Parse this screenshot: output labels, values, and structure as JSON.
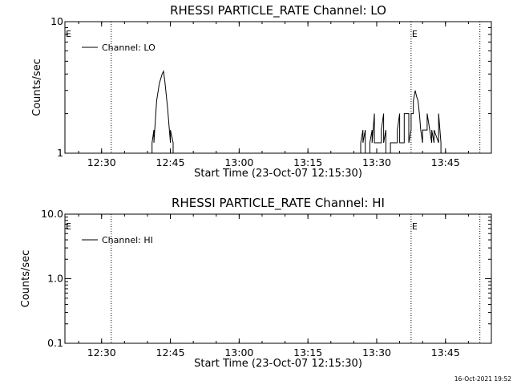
{
  "footer": {
    "timestamp": "16-Oct-2021 19:52"
  },
  "chart_data": [
    {
      "type": "line",
      "title": "RHESSI PARTICLE_RATE Channel: LO",
      "xlabel": "Start Time (23-Oct-07 12:15:30)",
      "ylabel": "Counts/sec",
      "xlim": [
        12.3667,
        13.9167
      ],
      "x_ticks": [
        12.5,
        12.75,
        13.0,
        13.25,
        13.5,
        13.75
      ],
      "x_tick_labels": [
        "12:30",
        "12:45",
        "13:00",
        "13:15",
        "13:30",
        "13:45"
      ],
      "ylim": [
        1,
        10
      ],
      "y_scale": "log",
      "y_ticks": [
        1,
        10
      ],
      "y_tick_labels": [
        "1",
        "10"
      ],
      "legend": {
        "position": "top-left",
        "entries": [
          "Channel: LO"
        ]
      },
      "markers": [
        {
          "x": 12.535,
          "label": ""
        },
        {
          "x": 13.625,
          "label": "E"
        },
        {
          "x": 13.875,
          "label": ""
        }
      ],
      "edge_label": "E",
      "series": [
        {
          "x": [
            12.6833,
            12.6833,
            12.69,
            12.69,
            12.7,
            12.71,
            12.72,
            12.725,
            12.73,
            12.74,
            12.75,
            12.75,
            12.76,
            12.76,
            13.4417,
            13.4417,
            13.45,
            13.45,
            13.4583,
            13.4583,
            13.475,
            13.475,
            13.4833,
            13.4833,
            13.4917,
            13.4917,
            13.5167,
            13.5167,
            13.525,
            13.525,
            13.5333,
            13.5333,
            13.55,
            13.55,
            13.575,
            13.575,
            13.5833,
            13.5833,
            13.6,
            13.6,
            13.6167,
            13.6167,
            13.625,
            13.625,
            13.6333,
            13.6333,
            13.64,
            13.645,
            13.65,
            13.655,
            13.66,
            13.6667,
            13.6667,
            13.6833,
            13.6833,
            13.7,
            13.7,
            13.7083,
            13.7083,
            13.725,
            13.725,
            13.7333,
            13.7333
          ],
          "y": [
            1,
            1.2,
            1.5,
            1.2,
            2.5,
            3.4,
            4.0,
            4.2,
            3.5,
            2.2,
            1.2,
            1.5,
            1.2,
            1,
            1,
            1.2,
            1.5,
            1.2,
            1.5,
            1,
            1,
            1.2,
            1.5,
            1.2,
            2.0,
            1.2,
            1.2,
            1.5,
            2.0,
            1.2,
            1.5,
            1,
            1,
            1.2,
            1.2,
            1.5,
            2.0,
            1.2,
            1.2,
            2.0,
            2.0,
            1.2,
            1.5,
            2.0,
            2.0,
            2.5,
            3.0,
            2.7,
            2.5,
            2.0,
            1.5,
            1.2,
            1.5,
            1.5,
            2.0,
            1.2,
            1.5,
            1.2,
            1.5,
            1.2,
            2.0,
            1.2,
            1
          ]
        }
      ]
    },
    {
      "type": "line",
      "title": "RHESSI PARTICLE_RATE Channel: HI",
      "xlabel": "Start Time (23-Oct-07 12:15:30)",
      "ylabel": "Counts/sec",
      "xlim": [
        12.3667,
        13.9167
      ],
      "x_ticks": [
        12.5,
        12.75,
        13.0,
        13.25,
        13.5,
        13.75
      ],
      "x_tick_labels": [
        "12:30",
        "12:45",
        "13:00",
        "13:15",
        "13:30",
        "13:45"
      ],
      "ylim": [
        0.1,
        10
      ],
      "y_scale": "log",
      "y_ticks": [
        0.1,
        1,
        10
      ],
      "y_tick_labels": [
        "0.1",
        "1.0",
        "10.0"
      ],
      "legend": {
        "position": "top-left",
        "entries": [
          "Channel: HI"
        ]
      },
      "markers": [
        {
          "x": 12.535,
          "label": ""
        },
        {
          "x": 13.625,
          "label": "E"
        },
        {
          "x": 13.875,
          "label": ""
        }
      ],
      "edge_label": "E",
      "series": []
    }
  ]
}
